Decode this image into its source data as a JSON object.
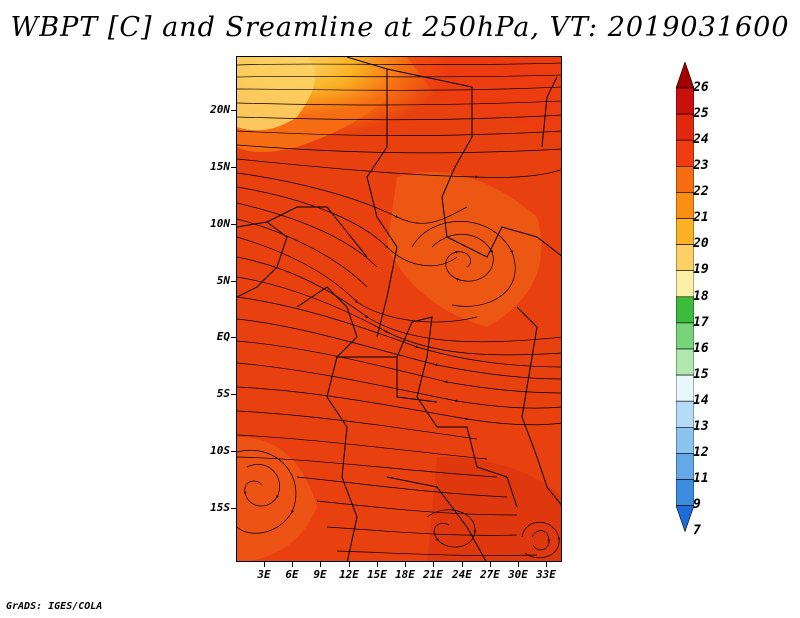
{
  "title": "WBPT [C] and Sreamline at 250hPa, VT: 2019031600",
  "map": {
    "lat_labels": [
      "20N",
      "15N",
      "10N",
      "5N",
      "EQ",
      "5S",
      "10S",
      "15S"
    ],
    "lon_labels": [
      "3E",
      "6E",
      "9E",
      "12E",
      "15E",
      "18E",
      "21E",
      "24E",
      "27E",
      "30E",
      "33E"
    ],
    "dominant_fill_color": "#e8400f"
  },
  "colorbar": {
    "labels": [
      "26",
      "25",
      "24",
      "23",
      "22",
      "21",
      "20",
      "19",
      "18",
      "17",
      "16",
      "15",
      "14",
      "13",
      "12",
      "11",
      "9",
      "7"
    ],
    "colors": [
      "#a50000",
      "#c8100c",
      "#e0280f",
      "#f03c10",
      "#f66c12",
      "#fa8e13",
      "#fbb224",
      "#fcd064",
      "#fcf0a8",
      "#3cbc3c",
      "#78d478",
      "#b0e8b0",
      "#e8f8fc",
      "#b4dcf8",
      "#8cc4f0",
      "#64a8e8",
      "#3c8ce0",
      "#1e6cd8"
    ]
  },
  "credit": "GrADS: IGES/COLA"
}
